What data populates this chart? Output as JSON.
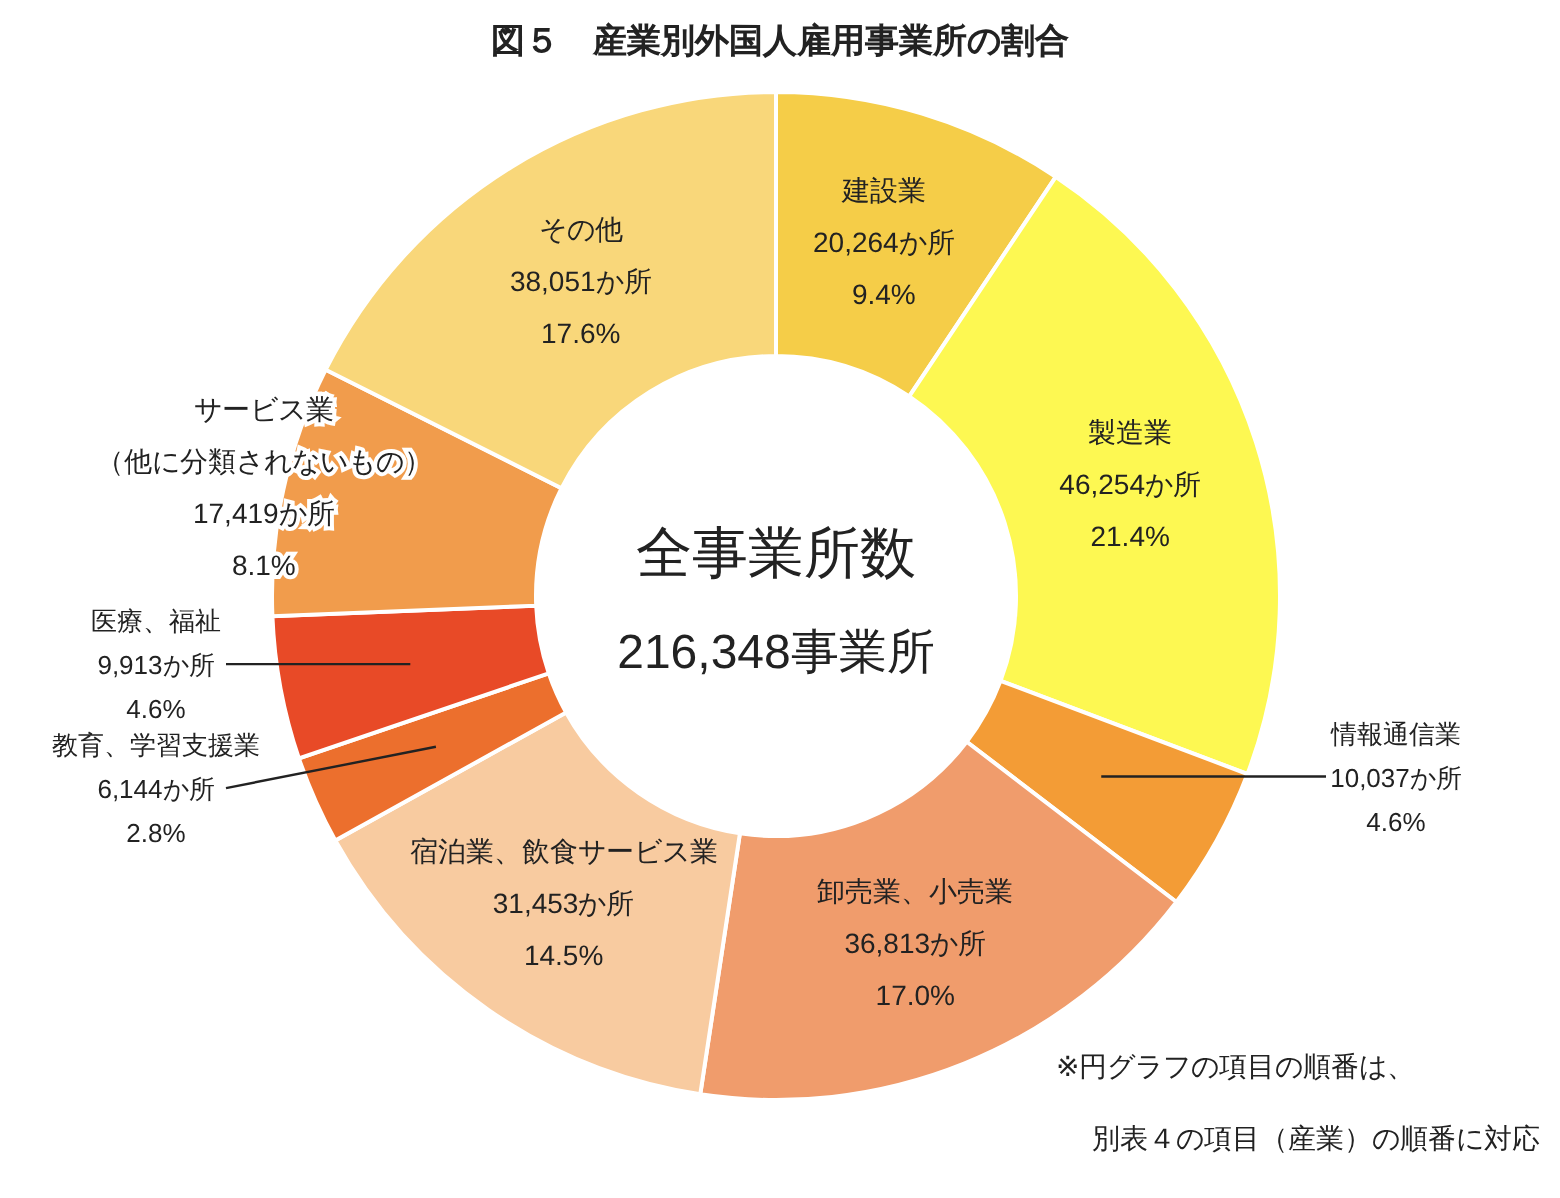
{
  "chart_data": {
    "type": "donut",
    "title": "図５　産業別外国人雇用事業所の割合",
    "categories": [
      "建設業",
      "製造業",
      "情報通信業",
      "卸売業、小売業",
      "宿泊業、飲食サービス業",
      "教育、学習支援業",
      "医療、福祉",
      "サービス業（他に分類されないもの）",
      "その他"
    ],
    "values": [
      20264,
      46254,
      10037,
      36813,
      31453,
      6144,
      9913,
      17419,
      38051
    ],
    "value_labels": [
      "20,264か所\n9.4%",
      "46,254か所\n21.4%",
      "10,037か所\n4.6%",
      "36,813か所\n17.0%",
      "31,453か所\n14.5%",
      "6,144か所\n2.8%",
      "9,913か所\n4.6%",
      "17,419か所\n8.1%",
      "38,051か所\n17.6%"
    ],
    "colors": [
      "#f5cd48",
      "#fdf852",
      "#f39c36",
      "#f09c6c",
      "#f8cba0",
      "#ec6f2d",
      "#e84a27",
      "#f19c4c",
      "#f9d77a"
    ],
    "annotations": [
      "全事業所数",
      "216,348事業所",
      "※円グラフの項目の順番は、",
      "別表４の項目（産業）の順番に対応"
    ]
  }
}
